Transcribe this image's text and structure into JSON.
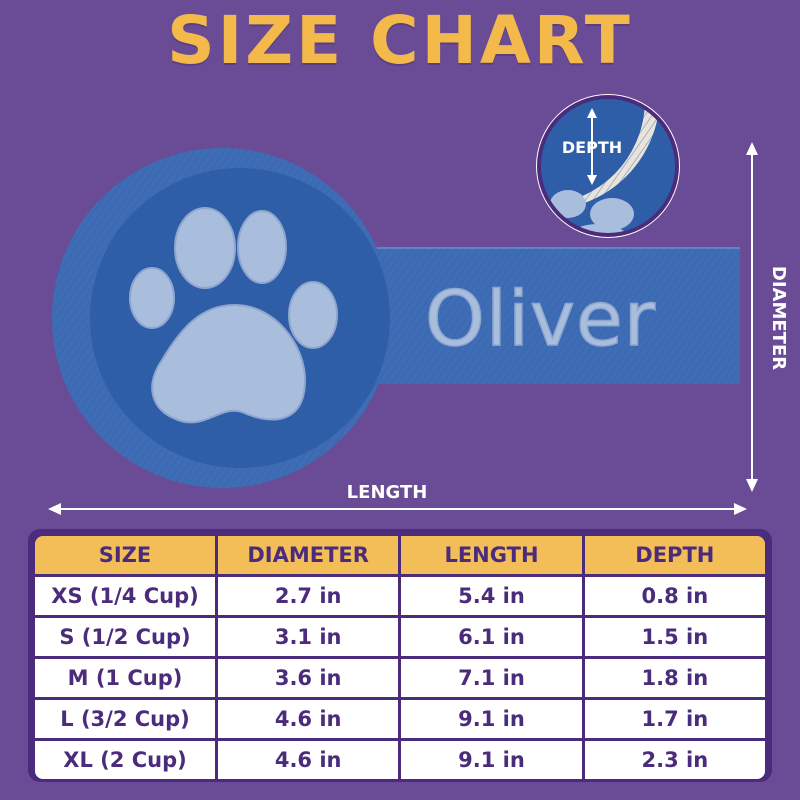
{
  "title": "SIZE CHART",
  "product": {
    "engraved_name": "Oliver",
    "depth_label": "DEPTH",
    "diameter_label": "DIAMETER",
    "length_label": "LENGTH",
    "paw_icon": "paw-icon"
  },
  "colors": {
    "background": "#6a4b95",
    "title": "#f3b94a",
    "scoop": "#3e6db6",
    "paw": "#a9bddd",
    "header_bg": "#f3be58",
    "table_border": "#4b2c7c",
    "text": "#4b2c7c"
  },
  "table": {
    "headers": [
      "SIZE",
      "DIAMETER",
      "LENGTH",
      "DEPTH"
    ],
    "rows": [
      [
        "XS (1/4 Cup)",
        "2.7 in",
        "5.4 in",
        "0.8 in"
      ],
      [
        "S (1/2 Cup)",
        "3.1 in",
        "6.1 in",
        "1.5 in"
      ],
      [
        "M (1 Cup)",
        "3.6 in",
        "7.1 in",
        "1.8 in"
      ],
      [
        "L (3/2 Cup)",
        "4.6 in",
        "9.1 in",
        "1.7 in"
      ],
      [
        "XL (2 Cup)",
        "4.6 in",
        "9.1 in",
        "2.3 in"
      ]
    ]
  }
}
